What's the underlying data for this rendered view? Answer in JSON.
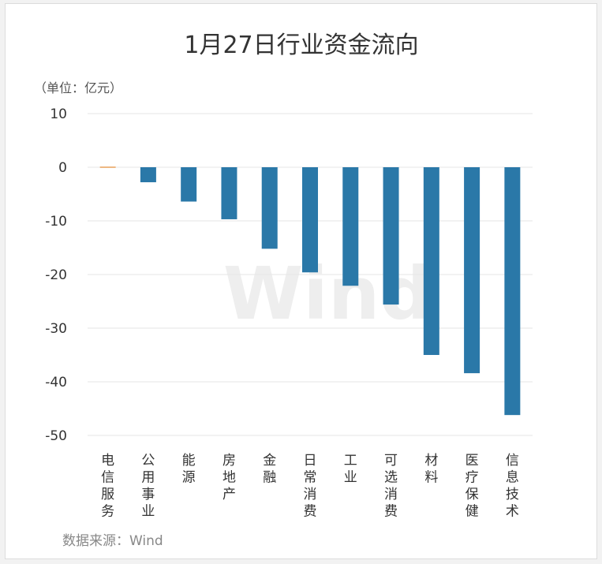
{
  "chart_data": {
    "type": "bar",
    "title": "1月27日行业资金流向",
    "unit_label": "（单位：亿元）",
    "categories": [
      "电信服务",
      "公用事业",
      "能源",
      "房地产",
      "金融",
      "日常消费",
      "工业",
      "可选消费",
      "材料",
      "医疗保健",
      "信息技术"
    ],
    "values": [
      0.1,
      -2.8,
      -6.4,
      -9.7,
      -15.2,
      -19.6,
      -22.1,
      -25.6,
      -35.0,
      -38.4,
      -46.2
    ],
    "ylim": [
      -50,
      10
    ],
    "yticks": [
      10,
      0,
      -10,
      -20,
      -30,
      -40,
      -50
    ],
    "ytick_labels": [
      "10",
      "0",
      "-10",
      "-20",
      "-30",
      "-40",
      "-50"
    ],
    "grid": true,
    "colors": {
      "negative": "#2a78a8",
      "positive": "#e8a05a"
    }
  },
  "watermark": "Wind",
  "source": "数据来源：Wind"
}
